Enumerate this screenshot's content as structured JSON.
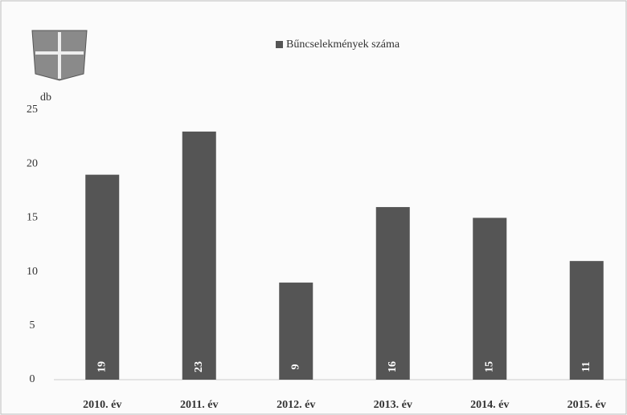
{
  "chart_data": {
    "type": "bar",
    "y_label": "db",
    "categories": [
      "2010. év",
      "2011. év",
      "2012. év",
      "2013. év",
      "2014. év",
      "2015. év"
    ],
    "series": [
      {
        "name": "Bűncselekmények száma",
        "color": "#555555",
        "values": [
          19,
          23,
          9,
          16,
          15,
          11
        ]
      }
    ],
    "ylim": [
      0,
      25
    ],
    "yticks": [
      0,
      5,
      10,
      15,
      20,
      25
    ],
    "legend": "top"
  }
}
